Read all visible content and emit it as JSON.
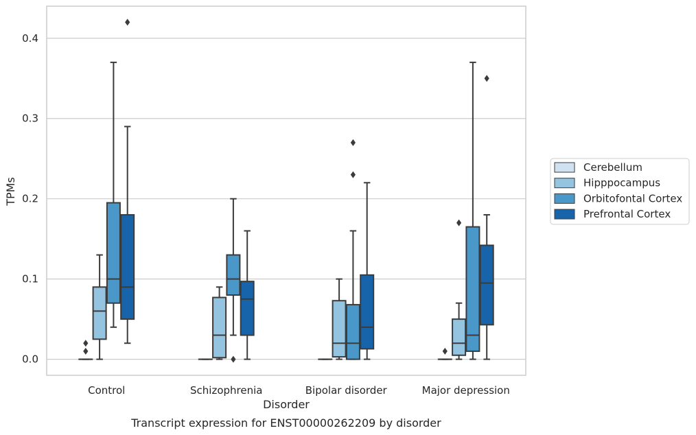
{
  "caption": "Transcript expression for ENST00000262209 by disorder",
  "chart_data": {
    "type": "box",
    "title": "",
    "xlabel": "Disorder",
    "ylabel": "TPMs",
    "ylim": [
      -0.02,
      0.44
    ],
    "yticks": [
      0.0,
      0.1,
      0.2,
      0.3,
      0.4
    ],
    "ytick_labels": [
      "0.0",
      "0.1",
      "0.2",
      "0.3",
      "0.4"
    ],
    "grid": true,
    "legend_position": "right",
    "categories": [
      "Control",
      "Schizophrenia",
      "Bipolar disorder",
      "Major depression"
    ],
    "series": [
      {
        "name": "Cerebellum",
        "color": "#d0e1f2",
        "boxes": [
          {
            "q1": 0.0,
            "median": 0.0,
            "q3": 0.0,
            "whisker_low": 0.0,
            "whisker_high": 0.0,
            "outliers": [
              0.01,
              0.02
            ]
          },
          {
            "q1": 0.0,
            "median": 0.0,
            "q3": 0.0,
            "whisker_low": 0.0,
            "whisker_high": 0.0,
            "outliers": []
          },
          {
            "q1": 0.0,
            "median": 0.0,
            "q3": 0.0,
            "whisker_low": 0.0,
            "whisker_high": 0.0,
            "outliers": []
          },
          {
            "q1": 0.0,
            "median": 0.0,
            "q3": 0.0,
            "whisker_low": 0.0,
            "whisker_high": 0.0,
            "outliers": [
              0.01
            ]
          }
        ]
      },
      {
        "name": "Hipppocampus",
        "color": "#94c4df",
        "boxes": [
          {
            "q1": 0.025,
            "median": 0.06,
            "q3": 0.09,
            "whisker_low": 0.0,
            "whisker_high": 0.13,
            "outliers": []
          },
          {
            "q1": 0.002,
            "median": 0.03,
            "q3": 0.077,
            "whisker_low": 0.0,
            "whisker_high": 0.09,
            "outliers": []
          },
          {
            "q1": 0.003,
            "median": 0.02,
            "q3": 0.073,
            "whisker_low": 0.0,
            "whisker_high": 0.1,
            "outliers": []
          },
          {
            "q1": 0.005,
            "median": 0.02,
            "q3": 0.05,
            "whisker_low": 0.0,
            "whisker_high": 0.07,
            "outliers": [
              0.17
            ]
          }
        ]
      },
      {
        "name": "Orbitofontal Cortex",
        "color": "#4a98c9",
        "boxes": [
          {
            "q1": 0.07,
            "median": 0.1,
            "q3": 0.195,
            "whisker_low": 0.04,
            "whisker_high": 0.37,
            "outliers": []
          },
          {
            "q1": 0.08,
            "median": 0.1,
            "q3": 0.13,
            "whisker_low": 0.03,
            "whisker_high": 0.2,
            "outliers": [
              0.0
            ]
          },
          {
            "q1": 0.0,
            "median": 0.02,
            "q3": 0.068,
            "whisker_low": 0.0,
            "whisker_high": 0.16,
            "outliers": [
              0.23,
              0.27
            ]
          },
          {
            "q1": 0.01,
            "median": 0.03,
            "q3": 0.165,
            "whisker_low": 0.0,
            "whisker_high": 0.37,
            "outliers": []
          }
        ]
      },
      {
        "name": "Prefrontal Cortex",
        "color": "#1764ab",
        "boxes": [
          {
            "q1": 0.05,
            "median": 0.09,
            "q3": 0.18,
            "whisker_low": 0.02,
            "whisker_high": 0.29,
            "outliers": [
              0.42
            ]
          },
          {
            "q1": 0.03,
            "median": 0.075,
            "q3": 0.097,
            "whisker_low": 0.0,
            "whisker_high": 0.16,
            "outliers": []
          },
          {
            "q1": 0.013,
            "median": 0.04,
            "q3": 0.105,
            "whisker_low": 0.0,
            "whisker_high": 0.22,
            "outliers": []
          },
          {
            "q1": 0.043,
            "median": 0.095,
            "q3": 0.142,
            "whisker_low": 0.0,
            "whisker_high": 0.18,
            "outliers": [
              0.35
            ]
          }
        ]
      }
    ]
  }
}
